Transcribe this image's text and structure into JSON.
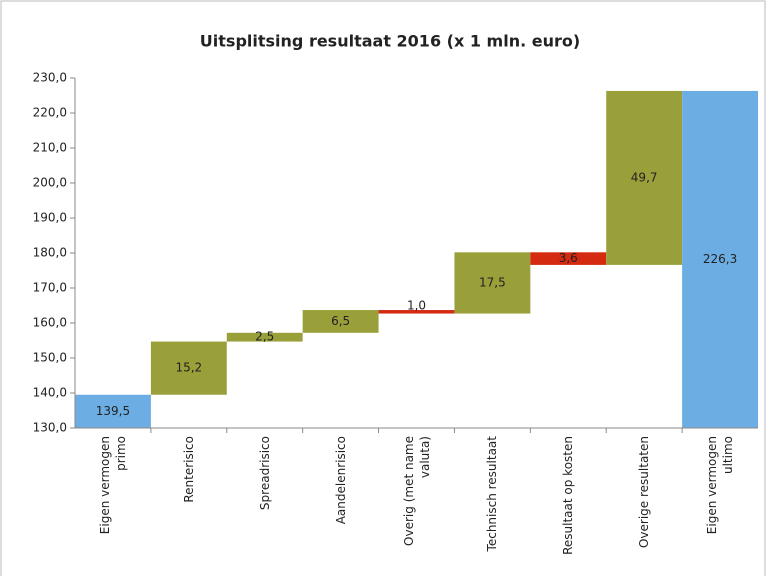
{
  "chart_data": {
    "type": "waterfall",
    "title": "Uitsplitsing resultaat 2016 (x 1 mln. euro)",
    "categories": [
      "Eigen vermogen primo",
      "Renterisico",
      "Spreadrisico",
      "Aandelenrisico",
      "Overig (met name valuta)",
      "Technisch resultaat",
      "Resultaat op kosten",
      "Overige resultaten",
      "Eigen vermogen ultimo"
    ],
    "values": [
      139.5,
      15.2,
      2.5,
      6.5,
      -1.0,
      17.5,
      -3.6,
      49.7,
      226.3
    ],
    "value_labels": [
      "139,5",
      "15,2",
      "2,5",
      "6,5",
      "1,0",
      "17,5",
      "3,6",
      "49,7",
      "226,3"
    ],
    "colors": {
      "total": "#6caee3",
      "increase": "#99a03a",
      "decrease": "#d42a10"
    },
    "ylim": [
      130,
      230
    ],
    "yticks": [
      {
        "value": 130,
        "label": "130,0"
      },
      {
        "value": 140,
        "label": "140,0"
      },
      {
        "value": 150,
        "label": "150,0"
      },
      {
        "value": 160,
        "label": "160,0"
      },
      {
        "value": 170,
        "label": "170,0"
      },
      {
        "value": 180,
        "label": "180,0"
      },
      {
        "value": 190,
        "label": "190,0"
      },
      {
        "value": 200,
        "label": "200,0"
      },
      {
        "value": 210,
        "label": "210,0"
      },
      {
        "value": 220,
        "label": "220,0"
      },
      {
        "value": 230,
        "label": "230,0"
      }
    ],
    "grid": false
  }
}
